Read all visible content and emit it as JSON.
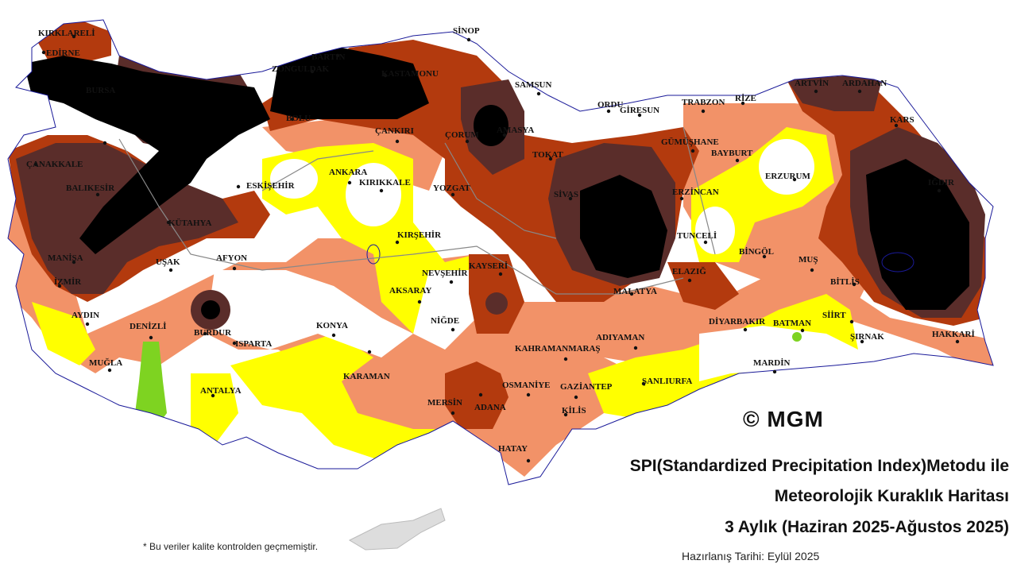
{
  "title_line1": "SPI(Standardized Precipitation Index)Metodu ile",
  "title_line2": "Meteorolojik Kuraklık Haritası",
  "title_line3": "3 Aylık (Haziran 2025-Ağustos 2025)",
  "prepared_date": "Hazırlanış Tarihi: Eylül 2025",
  "footnote": "* Bu veriler kalite kontrolden geçmemiştir.",
  "copyright": "© MGM",
  "colors": {
    "extreme": "#000000",
    "severe": "#5a2d2a",
    "moderate": "#b33a0e",
    "mild": "#f29268",
    "near_normal_dry": "#ffff00",
    "normal": "#ffffff",
    "wet": "#7ed321",
    "borders": "#888888"
  },
  "cities": [
    {
      "name": "KIRKLARELİ"
    },
    {
      "name": "EDİRNE"
    },
    {
      "name": "BARTIN"
    },
    {
      "name": "ZONGULDAK"
    },
    {
      "name": "SİNOP"
    },
    {
      "name": "KASTAMONU"
    },
    {
      "name": "SAMSUN"
    },
    {
      "name": "ORDU"
    },
    {
      "name": "GİRESUN"
    },
    {
      "name": "TRABZON"
    },
    {
      "name": "RİZE"
    },
    {
      "name": "ARTVİN"
    },
    {
      "name": "ARDAHAN"
    },
    {
      "name": "KARS"
    },
    {
      "name": "IĞDIR"
    },
    {
      "name": "ERZURUM"
    },
    {
      "name": "BAYBURT"
    },
    {
      "name": "GÜMÜŞHANE"
    },
    {
      "name": "ERZİNCAN"
    },
    {
      "name": "TUNCELİ"
    },
    {
      "name": "BİNGÖL"
    },
    {
      "name": "MUŞ"
    },
    {
      "name": "BİTLİS"
    },
    {
      "name": "SİİRT"
    },
    {
      "name": "BATMAN"
    },
    {
      "name": "ŞIRNAK"
    },
    {
      "name": "HAKKARİ"
    },
    {
      "name": "MARDİN"
    },
    {
      "name": "DİYARBAKIR"
    },
    {
      "name": "ŞANLIURFA"
    },
    {
      "name": "ADIYAMAN"
    },
    {
      "name": "MALATYA"
    },
    {
      "name": "ELAZIĞ"
    },
    {
      "name": "SİVAS"
    },
    {
      "name": "TOKAT"
    },
    {
      "name": "AMASYA"
    },
    {
      "name": "ÇORUM"
    },
    {
      "name": "YOZGAT"
    },
    {
      "name": "ÇANKIRI"
    },
    {
      "name": "KIRIKKALE"
    },
    {
      "name": "ANKARA"
    },
    {
      "name": "KIRŞEHİR"
    },
    {
      "name": "NEVŞEHİR"
    },
    {
      "name": "KAYSERİ"
    },
    {
      "name": "AKSARAY"
    },
    {
      "name": "NİĞDE"
    },
    {
      "name": "KONYA"
    },
    {
      "name": "KARAMAN"
    },
    {
      "name": "MERSİN"
    },
    {
      "name": "ADANA"
    },
    {
      "name": "OSMANİYE"
    },
    {
      "name": "GAZİANTEP"
    },
    {
      "name": "KİLİS"
    },
    {
      "name": "HATAY"
    },
    {
      "name": "KAHRAMANMARAŞ"
    },
    {
      "name": "ANTALYA"
    },
    {
      "name": "ISPARTA"
    },
    {
      "name": "BURDUR"
    },
    {
      "name": "DENİZLİ"
    },
    {
      "name": "MUĞLA"
    },
    {
      "name": "AYDIN"
    },
    {
      "name": "İZMİR"
    },
    {
      "name": "MANİSA"
    },
    {
      "name": "UŞAK"
    },
    {
      "name": "AFYON"
    },
    {
      "name": "KÜTAHYA"
    },
    {
      "name": "BALIKESİR"
    },
    {
      "name": "ÇANAKKALE"
    },
    {
      "name": "BOLU"
    },
    {
      "name": "ESKİŞEHİR"
    },
    {
      "name": "BURSA"
    }
  ]
}
